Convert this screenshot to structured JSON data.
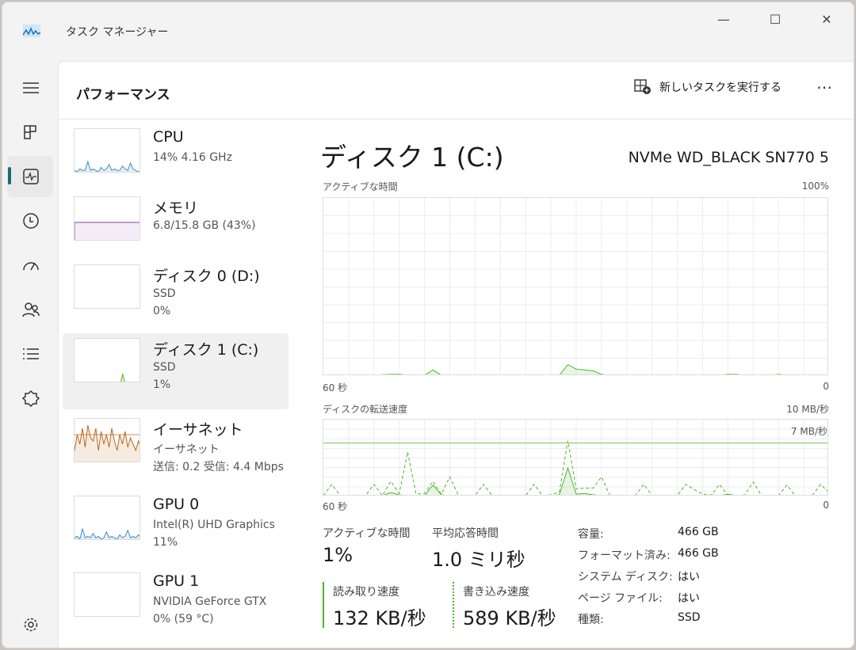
{
  "window": {
    "title": "タスク マネージャー",
    "minimize": "—",
    "maximize": "☐",
    "close": "✕"
  },
  "nav": {
    "items": [
      "menu-icon",
      "processes-icon",
      "performance-icon",
      "app-history-icon",
      "startup-icon",
      "users-icon",
      "details-icon",
      "services-icon"
    ],
    "settings": "gear-icon"
  },
  "header": {
    "title": "パフォーマンス",
    "new_task": "新しいタスクを実行する",
    "more": "⋯"
  },
  "sidebar": {
    "items": [
      {
        "name": "CPU",
        "sub1": "14% 4.16 GHz",
        "sub2": "",
        "color": "#3d8fc6",
        "spark": [
          2,
          1,
          3,
          2,
          2,
          8,
          2,
          3,
          2,
          1,
          4,
          2,
          3,
          6,
          2,
          3,
          2,
          2,
          5,
          3,
          2,
          7,
          3,
          2,
          1,
          2
        ]
      },
      {
        "name": "メモリ",
        "sub1": "6.8/15.8 GB (43%)",
        "sub2": "",
        "color": "#8b3fa6",
        "spark": [
          43,
          43,
          43,
          43,
          43,
          43,
          43,
          43,
          43,
          43
        ]
      },
      {
        "name": "ディスク 0 (D:)",
        "sub1": "SSD",
        "sub2": "0%",
        "color": "#4db52a",
        "spark": [
          0,
          0,
          0,
          0,
          0
        ]
      },
      {
        "name": "ディスク 1 (C:)",
        "sub1": "SSD",
        "sub2": "1%",
        "color": "#4db52a",
        "spark": [
          0,
          0,
          0,
          0,
          0,
          0,
          0,
          0,
          0,
          0,
          0,
          0,
          0,
          0,
          0,
          0,
          0,
          0,
          0,
          0,
          0,
          5,
          0,
          0,
          0,
          0,
          0,
          0,
          0,
          0
        ]
      },
      {
        "name": "イーサネット",
        "sub1": "イーサネット",
        "sub2": "送信: 0.2 受信: 4.4 Mbps",
        "color": "#b8691b",
        "spark": [
          20,
          45,
          30,
          55,
          25,
          60,
          40,
          35,
          55,
          20,
          50,
          30,
          45,
          25,
          55,
          35,
          20,
          45,
          30,
          50,
          25,
          40,
          30,
          20,
          35,
          25
        ]
      },
      {
        "name": "GPU 0",
        "sub1": "Intel(R) UHD Graphics",
        "sub2": "11%",
        "color": "#3d8fc6",
        "spark": [
          2,
          3,
          1,
          8,
          2,
          3,
          2,
          5,
          2,
          3,
          1,
          2,
          6,
          2,
          3,
          2,
          1,
          4,
          2,
          3,
          7,
          2,
          3,
          2,
          4,
          2
        ]
      },
      {
        "name": "GPU 1",
        "sub1": "NVIDIA GeForce GTX",
        "sub2": "0% (59 °C)",
        "color": "#3d8fc6",
        "spark": [
          0,
          0,
          0,
          0,
          0
        ]
      }
    ]
  },
  "detail": {
    "title": "ディスク 1 (C:)",
    "model": "NVMe WD_BLACK SN770 5",
    "stats": {
      "active_label": "アクティブな時間",
      "active_value": "1%",
      "resp_label": "平均応答時間",
      "resp_value": "1.0 ミリ秒",
      "read_label": "読み取り速度",
      "read_value": "132 KB/秒",
      "write_label": "書き込み速度",
      "write_value": "589 KB/秒"
    },
    "props": [
      {
        "k": "容量:",
        "v": "466 GB"
      },
      {
        "k": "フォーマット済み:",
        "v": "466 GB"
      },
      {
        "k": "システム ディスク:",
        "v": "はい"
      },
      {
        "k": "ページ ファイル:",
        "v": "はい"
      },
      {
        "k": "種類:",
        "v": "SSD"
      }
    ]
  },
  "chart_data": [
    {
      "type": "area",
      "title": "アクティブな時間",
      "ymax_label": "100%",
      "xmin_label": "60 秒",
      "xmax_label": "0",
      "ylim": [
        0,
        100
      ],
      "color": "#4db52a",
      "values": [
        0,
        0,
        0,
        0,
        0,
        0,
        0,
        0.3,
        0.5,
        0.6,
        0,
        0,
        0,
        3,
        0,
        0,
        0,
        0,
        0,
        0,
        0,
        0,
        0,
        0,
        0,
        0,
        0,
        0,
        0,
        6,
        3.5,
        3,
        2.5,
        0.5,
        0,
        0,
        0,
        0,
        0,
        0,
        0,
        0,
        0,
        0,
        0,
        0,
        0,
        0,
        0.5,
        0.5,
        0,
        0,
        0,
        0,
        0.5,
        0,
        0,
        0,
        0,
        0,
        0
      ]
    },
    {
      "type": "line",
      "title": "ディスクの転送速度",
      "ymax_label": "10 MB/秒",
      "ref_label": "7 MB/秒",
      "ref_value": 7,
      "xmin_label": "60 秒",
      "xmax_label": "0",
      "ylim": [
        0,
        10
      ],
      "color": "#4db52a",
      "series": [
        {
          "style": "solid",
          "values": [
            0,
            0,
            0,
            0,
            0,
            0,
            0,
            0,
            0.4,
            0.1,
            0,
            0,
            0,
            1.4,
            0.1,
            0,
            0,
            0,
            0,
            0,
            0,
            0,
            0,
            0,
            0,
            0,
            0,
            0,
            0.1,
            3.7,
            0.2,
            0.3,
            0.1,
            0,
            0,
            0,
            0,
            0,
            0,
            0,
            0,
            0,
            0,
            0,
            0,
            0,
            0.1,
            0,
            0.2,
            0,
            0,
            0,
            0,
            0,
            0,
            0,
            0,
            0,
            0,
            0,
            0
          ]
        },
        {
          "style": "dashed",
          "values": [
            0,
            1.5,
            0,
            0,
            0,
            0,
            1.5,
            0,
            1.9,
            0.3,
            5.8,
            0.2,
            0.3,
            1.9,
            0.2,
            2.5,
            0.1,
            0,
            0,
            1.5,
            0,
            0,
            0,
            0,
            0,
            1.5,
            0,
            0.1,
            0.5,
            7.3,
            0.9,
            1,
            1,
            2.5,
            0,
            0,
            0,
            0,
            1.5,
            0,
            0,
            0,
            0,
            1.5,
            0.8,
            0.2,
            0,
            1.5,
            0,
            0,
            0.1,
            1.8,
            0,
            0,
            0,
            1.4,
            0,
            0,
            0,
            1.5,
            0.4
          ]
        }
      ]
    }
  ]
}
